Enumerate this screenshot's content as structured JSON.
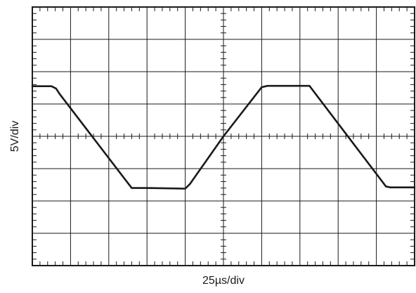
{
  "chart_data": {
    "type": "line",
    "title": "",
    "xlabel": "25µs/div",
    "ylabel": "5V/div",
    "grid": true,
    "xlim": [
      0,
      10
    ],
    "ylim": [
      -4,
      4
    ],
    "x_unit": "divisions",
    "y_unit": "divisions",
    "series": [
      {
        "x": [
          0,
          0.5,
          0.62,
          0.72,
          2.6,
          3.0,
          4.0,
          4.12,
          5.0,
          6.0,
          6.15,
          6.3,
          7.25,
          9.25,
          9.36,
          10.0
        ],
        "values": [
          1.55,
          1.55,
          1.48,
          1.3,
          -1.6,
          -1.6,
          -1.62,
          -1.48,
          0.0,
          1.52,
          1.56,
          1.56,
          1.56,
          -1.55,
          -1.58,
          -1.58
        ]
      }
    ]
  },
  "colors": {
    "trace": "#1a1a1a",
    "grid": "#1a1a1a",
    "background": "#ffffff"
  }
}
